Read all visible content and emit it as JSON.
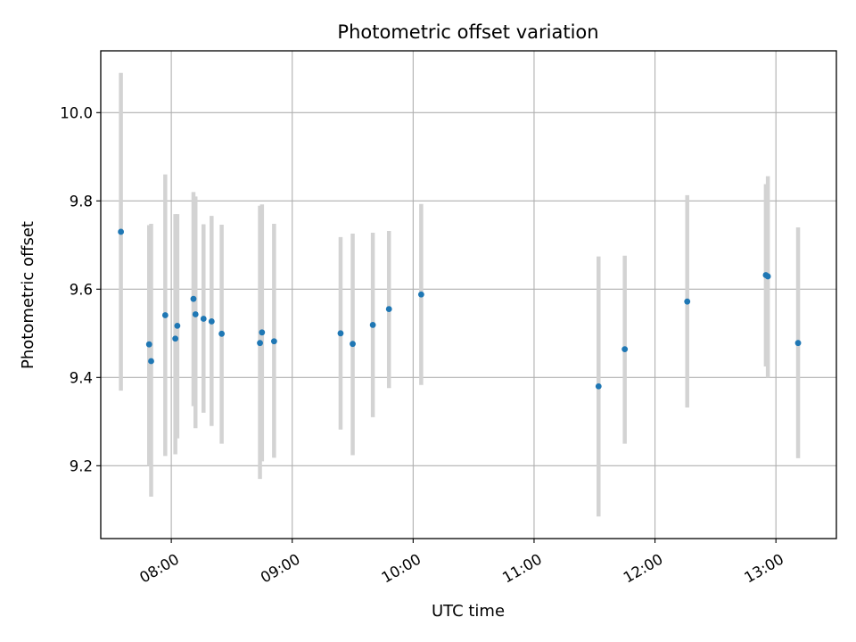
{
  "chart_data": {
    "type": "scatter",
    "title": "Photometric offset variation",
    "xlabel": "UTC time",
    "ylabel": "Photometric offset",
    "x_axis_type": "time",
    "xlim": [
      "07:25",
      "13:30"
    ],
    "ylim": [
      9.035,
      10.14
    ],
    "grid": true,
    "x_ticks": [
      "08:00",
      "09:00",
      "10:00",
      "11:00",
      "12:00",
      "13:00"
    ],
    "y_ticks": [
      "9.2",
      "9.4",
      "9.6",
      "9.8",
      "10.0"
    ],
    "marker_color": "#1f77b4",
    "errorbar_color": "#d3d3d3",
    "points": [
      {
        "x": "07:35",
        "y": 9.73,
        "ylow": 9.37,
        "yhigh": 10.09
      },
      {
        "x": "07:49",
        "y": 9.475,
        "ylow": 9.2,
        "yhigh": 9.745
      },
      {
        "x": "07:50",
        "y": 9.437,
        "ylow": 9.13,
        "yhigh": 9.748
      },
      {
        "x": "07:57",
        "y": 9.541,
        "ylow": 9.222,
        "yhigh": 9.86
      },
      {
        "x": "08:02",
        "y": 9.488,
        "ylow": 9.226,
        "yhigh": 9.77
      },
      {
        "x": "08:03",
        "y": 9.517,
        "ylow": 9.262,
        "yhigh": 9.77
      },
      {
        "x": "08:11",
        "y": 9.578,
        "ylow": 9.335,
        "yhigh": 9.82
      },
      {
        "x": "08:12",
        "y": 9.543,
        "ylow": 9.285,
        "yhigh": 9.81
      },
      {
        "x": "08:16",
        "y": 9.533,
        "ylow": 9.32,
        "yhigh": 9.747
      },
      {
        "x": "08:20",
        "y": 9.527,
        "ylow": 9.29,
        "yhigh": 9.766
      },
      {
        "x": "08:25",
        "y": 9.499,
        "ylow": 9.25,
        "yhigh": 9.746
      },
      {
        "x": "08:44",
        "y": 9.478,
        "ylow": 9.17,
        "yhigh": 9.789
      },
      {
        "x": "08:45",
        "y": 9.502,
        "ylow": 9.21,
        "yhigh": 9.792
      },
      {
        "x": "08:51",
        "y": 9.482,
        "ylow": 9.218,
        "yhigh": 9.748
      },
      {
        "x": "09:24",
        "y": 9.5,
        "ylow": 9.282,
        "yhigh": 9.718
      },
      {
        "x": "09:30",
        "y": 9.476,
        "ylow": 9.224,
        "yhigh": 9.726
      },
      {
        "x": "09:40",
        "y": 9.519,
        "ylow": 9.31,
        "yhigh": 9.728
      },
      {
        "x": "09:48",
        "y": 9.555,
        "ylow": 9.376,
        "yhigh": 9.732
      },
      {
        "x": "10:04",
        "y": 9.588,
        "ylow": 9.383,
        "yhigh": 9.793
      },
      {
        "x": "11:32",
        "y": 9.38,
        "ylow": 9.085,
        "yhigh": 9.674
      },
      {
        "x": "11:45",
        "y": 9.464,
        "ylow": 9.25,
        "yhigh": 9.676
      },
      {
        "x": "12:16",
        "y": 9.572,
        "ylow": 9.332,
        "yhigh": 9.813
      },
      {
        "x": "12:55",
        "y": 9.632,
        "ylow": 9.425,
        "yhigh": 9.838
      },
      {
        "x": "12:56",
        "y": 9.629,
        "ylow": 9.4,
        "yhigh": 9.856
      },
      {
        "x": "13:11",
        "y": 9.478,
        "ylow": 9.217,
        "yhigh": 9.74
      }
    ]
  }
}
